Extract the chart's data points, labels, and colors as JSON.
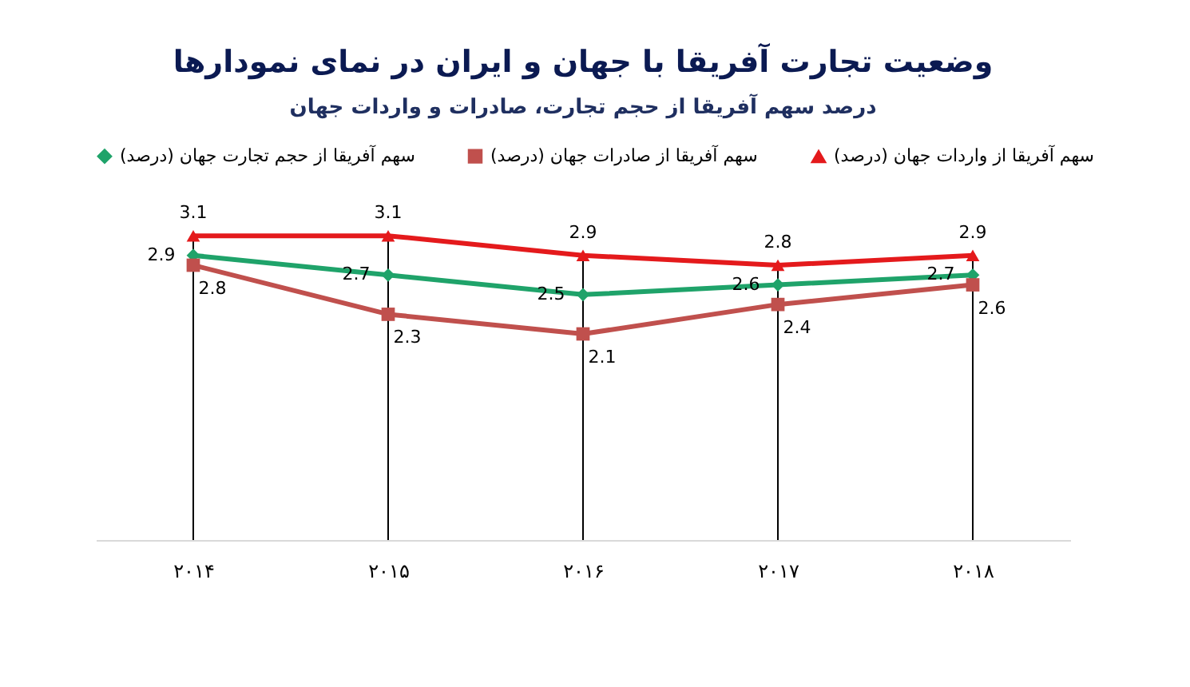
{
  "chart_data": {
    "type": "line",
    "title": "وضعیت تجارت آفریقا با جهان و ایران در نمای نمودارها",
    "subtitle": "درصد سهم آفریقا از حجم تجارت، صادرات و واردات جهان",
    "categories": [
      "۲۰۱۴",
      "۲۰۱۵",
      "۲۰۱۶",
      "۲۰۱۷",
      "۲۰۱۸"
    ],
    "series": [
      {
        "name": "سهم آفریقا از حجم تجارت جهان (درصد)",
        "color": "#1fa36a",
        "marker": "diamond",
        "values": [
          2.9,
          2.7,
          2.5,
          2.6,
          2.7
        ]
      },
      {
        "name": "سهم آفریقا از صادرات جهان (درصد)",
        "color": "#c0504d",
        "marker": "square",
        "values": [
          2.8,
          2.3,
          2.1,
          2.4,
          2.6
        ]
      },
      {
        "name": "سهم آفریقا از واردات جهان (درصد)",
        "color": "#e41a1c",
        "marker": "triangle",
        "values": [
          3.1,
          3.1,
          2.9,
          2.8,
          2.9
        ]
      }
    ],
    "data_labels": true,
    "legend": "top",
    "grid": "x"
  }
}
